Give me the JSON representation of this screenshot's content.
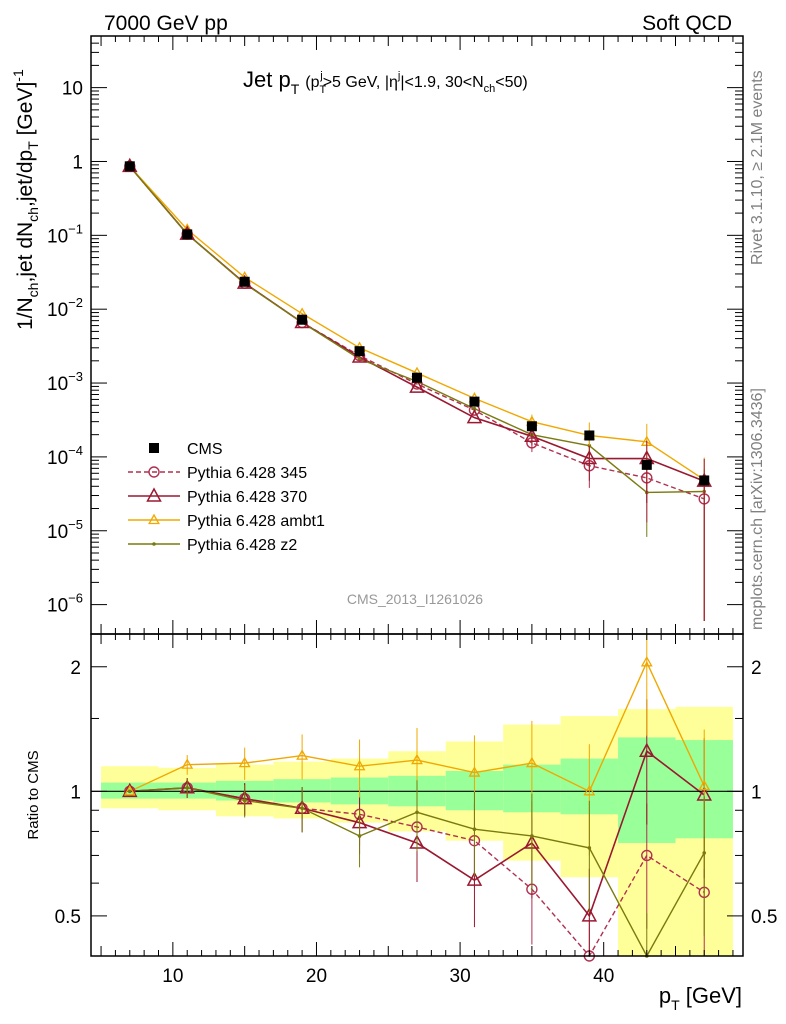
{
  "header": {
    "left": "7000 GeV pp",
    "right": "Soft QCD"
  },
  "side_labels": {
    "rivet": "Rivet 3.1.10, ≥ 2.1M events",
    "mcplots": "mcplots.cern.ch [arXiv:1306.3436]"
  },
  "analysis_id": "CMS_2013_I1261026",
  "colors": {
    "cms": "#000000",
    "p345": "#b03050",
    "p370": "#9a1830",
    "ambt1": "#f0a800",
    "z2": "#7a7a10",
    "band_green": "#99ff99",
    "band_yellow": "#ffff99"
  },
  "chart_data": [
    {
      "type": "scatter",
      "title": "Jet p_T (p_T^j>5 GeV, |η^j|<1.9, 30<N_ch<50)",
      "title_parts": {
        "main": "Jet p",
        "main_sub": "T",
        "cond_a": "(p",
        "cond_a_sub": "T",
        "cond_a_sup": "j",
        "cond_b": ">5 GeV, |η",
        "cond_b_sup": "j",
        "cond_c": "|<1.9, 30<N",
        "cond_c_sub": "ch",
        "cond_d": "<50)"
      },
      "ylabel": "1/N_ch,jet dN_ch,jet/dp_T [GeV]^-1",
      "ylabel_parts": {
        "a": "1/N",
        "a_sub": "ch",
        "b": ",jet dN",
        "b_sub": "ch",
        "c": ",jet/dp",
        "c_sub": "T",
        "d": " [GeV]",
        "d_sup": "-1"
      },
      "yscale": "log",
      "ylim": [
        4e-07,
        50
      ],
      "xlim": [
        4.3,
        49.7
      ],
      "x_ticks": [
        10,
        20,
        30,
        40
      ],
      "y_ticks": [
        {
          "v": 1e-06,
          "base": "10",
          "exp": "−6"
        },
        {
          "v": 1e-05,
          "base": "10",
          "exp": "−5"
        },
        {
          "v": 0.0001,
          "base": "10",
          "exp": "−4"
        },
        {
          "v": 0.001,
          "base": "10",
          "exp": "−3"
        },
        {
          "v": 0.01,
          "base": "10",
          "exp": "−2"
        },
        {
          "v": 0.1,
          "base": "10",
          "exp": "−1"
        },
        {
          "v": 1,
          "base": "1",
          "exp": ""
        },
        {
          "v": 10,
          "base": "10",
          "exp": ""
        }
      ],
      "x": [
        7,
        11,
        15,
        19,
        23,
        27,
        31,
        35,
        39,
        43,
        47
      ],
      "series": [
        {
          "name": "CMS",
          "key": "cms",
          "values": [
            0.86,
            0.103,
            0.0235,
            0.0072,
            0.0027,
            0.00118,
            0.00056,
            0.00026,
            0.000195,
            7.8e-05,
            4.8e-05
          ]
        },
        {
          "name": "Pythia 6.428 345",
          "key": "p345",
          "values": [
            0.86,
            0.104,
            0.0225,
            0.0066,
            0.00235,
            0.00097,
            0.00043,
            0.000155,
            7.6e-05,
            5.2e-05,
            2.7e-05
          ]
        },
        {
          "name": "Pythia 6.428 370",
          "key": "p370",
          "values": [
            0.86,
            0.104,
            0.0225,
            0.0066,
            0.00225,
            0.00088,
            0.00034,
            0.00019,
            9.5e-05,
            9.5e-05,
            4.7e-05
          ]
        },
        {
          "name": "Pythia 6.428 ambt1",
          "key": "ambt1",
          "values": [
            0.86,
            0.12,
            0.027,
            0.0087,
            0.003,
            0.00137,
            0.00062,
            0.0003,
            0.000195,
            0.00016,
            4.9e-05
          ]
        },
        {
          "name": "Pythia 6.428 z2",
          "key": "z2",
          "values": [
            0.86,
            0.104,
            0.0222,
            0.0066,
            0.00212,
            0.00105,
            0.00045,
            0.0002,
            0.000142,
            3.3e-05,
            3.4e-05
          ]
        }
      ]
    },
    {
      "type": "scatter",
      "ylabel": "Ratio to CMS",
      "xlabel": "p_T [GeV]",
      "xlabel_parts": {
        "a": "p",
        "a_sub": "T",
        "b": " [GeV]"
      },
      "yscale": "log",
      "ylim": [
        0.4,
        2.4
      ],
      "xlim": [
        4.3,
        49.7
      ],
      "y_ticks": [
        0.5,
        1,
        2
      ],
      "x": [
        7,
        11,
        15,
        19,
        23,
        27,
        31,
        35,
        39,
        43,
        47
      ],
      "band_edges": [
        5,
        9,
        13,
        17,
        21,
        25,
        29,
        33,
        37,
        41,
        45,
        49
      ],
      "green_band": {
        "low": [
          0.96,
          0.96,
          0.95,
          0.94,
          0.93,
          0.92,
          0.9,
          0.89,
          0.88,
          0.75,
          0.77
        ],
        "high": [
          1.05,
          1.05,
          1.06,
          1.07,
          1.08,
          1.09,
          1.12,
          1.16,
          1.2,
          1.35,
          1.33
        ]
      },
      "yellow_band": {
        "low": [
          0.91,
          0.9,
          0.87,
          0.86,
          0.84,
          0.8,
          0.76,
          0.68,
          0.62,
          0.4,
          0.4
        ],
        "high": [
          1.15,
          1.14,
          1.16,
          1.18,
          1.2,
          1.25,
          1.32,
          1.45,
          1.52,
          1.58,
          1.6
        ]
      },
      "series": [
        {
          "name": "Pythia 6.428 345",
          "key": "p345",
          "values": [
            1.0,
            1.02,
            0.96,
            0.91,
            0.88,
            0.82,
            0.76,
            0.58,
            0.38,
            0.7,
            0.57
          ]
        },
        {
          "name": "Pythia 6.428 370",
          "key": "p370",
          "values": [
            1.0,
            1.02,
            0.96,
            0.91,
            0.84,
            0.75,
            0.61,
            0.75,
            0.5,
            1.25,
            0.98
          ]
        },
        {
          "name": "Pythia 6.428 ambt1",
          "key": "ambt1",
          "values": [
            1.0,
            1.16,
            1.17,
            1.22,
            1.15,
            1.19,
            1.11,
            1.17,
            1.0,
            2.05,
            1.03
          ]
        },
        {
          "name": "Pythia 6.428 z2",
          "key": "z2",
          "values": [
            1.0,
            1.02,
            0.95,
            0.91,
            0.78,
            0.89,
            0.81,
            0.78,
            0.73,
            0.38,
            0.71
          ]
        }
      ]
    }
  ]
}
